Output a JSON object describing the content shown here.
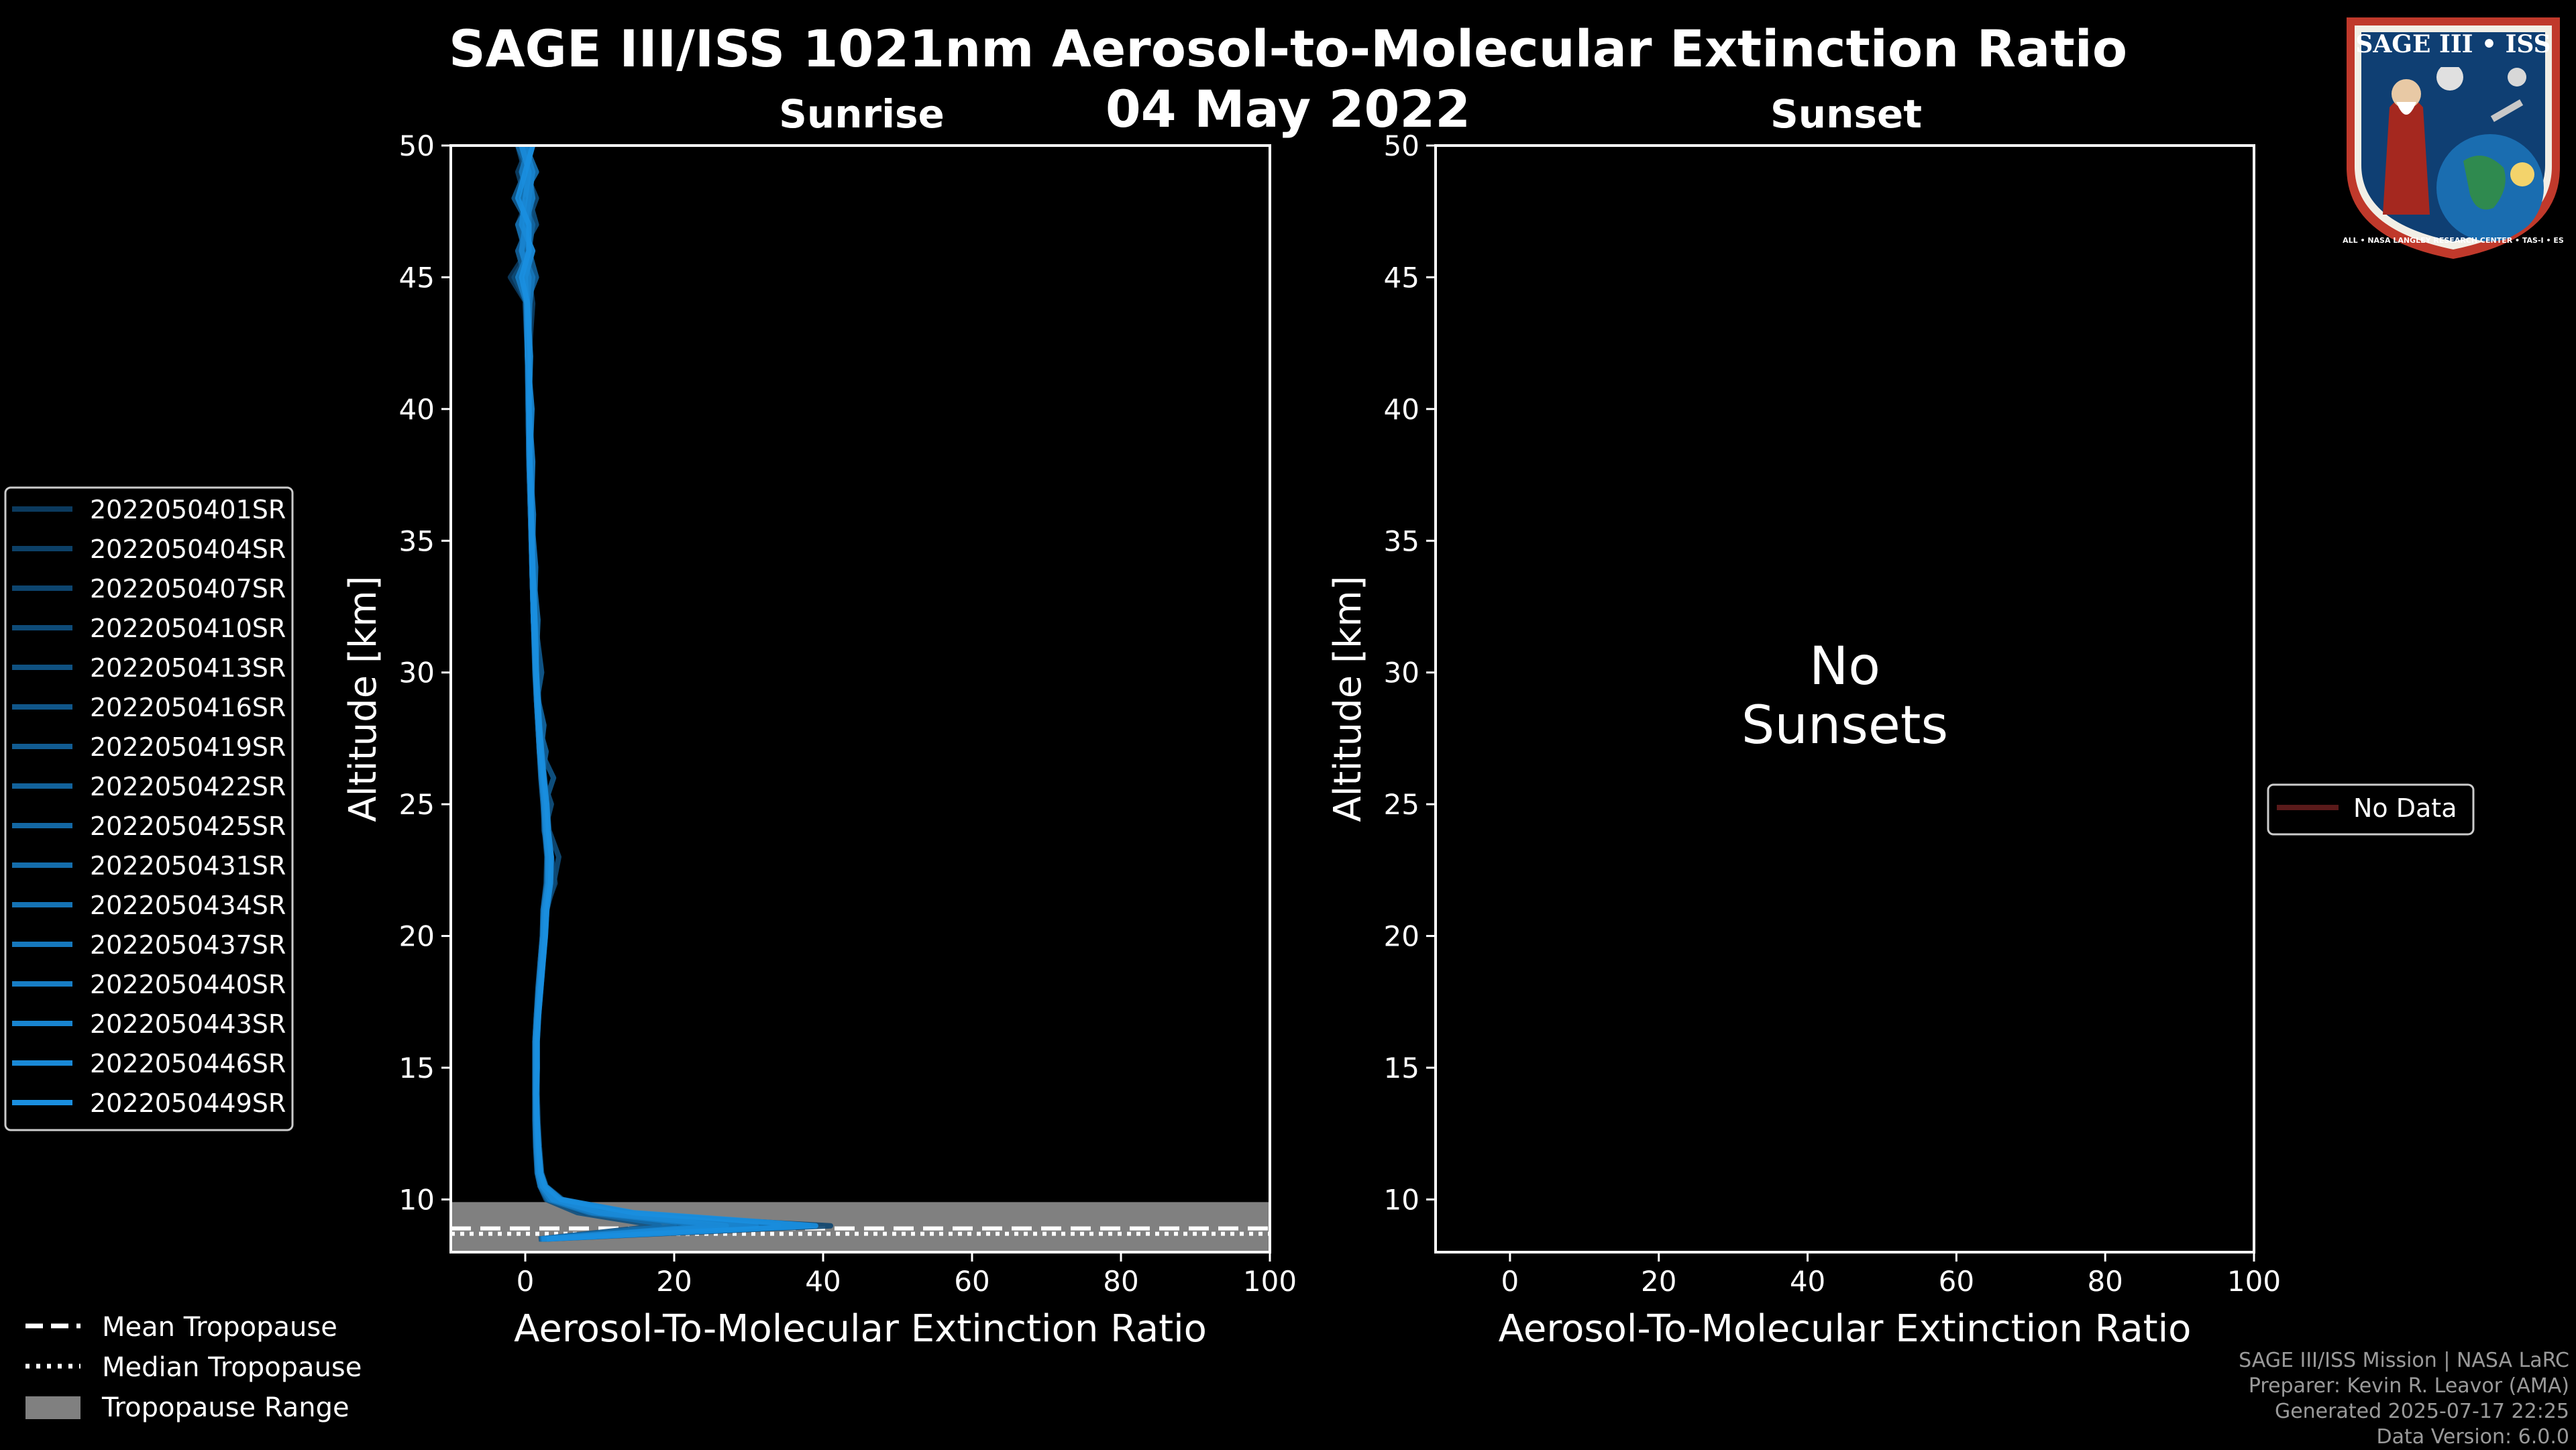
{
  "title_line1": "SAGE III/ISS 1021nm Aerosol-to-Molecular Extinction Ratio",
  "title_line2": "04 May 2022",
  "logo": {
    "name": "SAGE III • ISS",
    "ring_text": "BALL • NASA LANGLEY RESEARCH CENTER • TAS-I • ESA"
  },
  "footer": {
    "line1": "SAGE III/ISS Mission | NASA LaRC",
    "line2": "Preparer: Kevin R. Leavor (AMA)",
    "line3": "Generated 2025-07-17 22:25",
    "line4": "Data Version: 6.0.0"
  },
  "colors": {
    "background": "#000000",
    "sunrise_dark": "#0b3a5e",
    "sunrise_light": "#1a8fe0",
    "tropopause_fill": "#808080",
    "no_data": "#5a1a1a"
  },
  "chart_data": [
    {
      "type": "line",
      "title": "Sunrise",
      "xlabel": "Aerosol-To-Molecular Extinction Ratio",
      "ylabel": "Altitude [km]",
      "xlim": [
        -10,
        100
      ],
      "ylim": [
        8,
        50
      ],
      "xticks": [
        0,
        20,
        40,
        60,
        80,
        100
      ],
      "yticks": [
        10,
        15,
        20,
        25,
        30,
        35,
        40,
        45,
        50
      ],
      "altitudes": [
        8.5,
        9,
        9.5,
        10,
        10.5,
        11,
        12,
        13,
        14,
        15,
        16,
        17,
        18,
        19,
        20,
        21,
        22,
        23,
        24,
        25,
        26,
        27,
        28,
        29,
        30,
        32,
        34,
        36,
        38,
        40,
        42,
        44,
        45,
        46,
        47,
        48,
        49,
        50
      ],
      "series": [
        {
          "name": "2022050401SR",
          "values": [
            2.0,
            26.0,
            8.0,
            3.0,
            2.5,
            2.0,
            1.8,
            1.5,
            1.5,
            1.4,
            1.5,
            1.7,
            2.0,
            2.3,
            2.6,
            2.6,
            3.5,
            3.0,
            2.8,
            2.6,
            2.3,
            2.0,
            1.8,
            1.6,
            1.5,
            1.2,
            1.0,
            0.8,
            0.6,
            0.5,
            0.3,
            0.2,
            -2.0,
            0.3,
            -1.0,
            0.4,
            -0.5,
            1.0
          ]
        },
        {
          "name": "2022050404SR",
          "values": [
            2.5,
            33.0,
            11.0,
            4.0,
            2.0,
            1.6,
            1.5,
            1.4,
            1.4,
            1.4,
            1.3,
            1.5,
            1.8,
            2.1,
            2.4,
            2.5,
            3.0,
            3.3,
            2.5,
            2.5,
            2.2,
            1.9,
            1.7,
            1.5,
            1.4,
            1.1,
            0.9,
            0.7,
            0.5,
            0.4,
            0.5,
            1.0,
            0.5,
            -1.0,
            1.0,
            0.0,
            -1.0,
            0.5
          ]
        },
        {
          "name": "2022050407SR",
          "values": [
            3.0,
            41.0,
            9.0,
            3.5,
            2.2,
            1.8,
            1.6,
            1.5,
            1.5,
            1.5,
            1.4,
            1.6,
            1.9,
            2.2,
            2.5,
            2.7,
            4.0,
            3.5,
            3.0,
            2.7,
            2.4,
            2.1,
            1.9,
            1.7,
            1.5,
            1.2,
            1.0,
            0.8,
            0.6,
            0.5,
            0.4,
            0.3,
            1.0,
            0.0,
            0.5,
            -0.5,
            0.5,
            0.0
          ]
        },
        {
          "name": "2022050410SR",
          "values": [
            2.2,
            22.0,
            14.0,
            5.0,
            2.8,
            2.2,
            1.9,
            1.7,
            1.6,
            1.6,
            1.6,
            1.8,
            2.1,
            2.4,
            2.7,
            2.9,
            3.8,
            4.5,
            3.2,
            2.9,
            2.6,
            2.2,
            2.0,
            1.8,
            1.6,
            1.3,
            1.1,
            0.9,
            0.7,
            0.6,
            0.4,
            0.2,
            -1.5,
            0.6,
            0.2,
            1.5,
            0.0,
            -1.0
          ]
        },
        {
          "name": "2022050413SR",
          "values": [
            1.8,
            18.0,
            7.0,
            2.8,
            2.0,
            1.7,
            1.5,
            1.4,
            1.3,
            1.3,
            1.3,
            1.5,
            1.8,
            2.0,
            2.3,
            2.4,
            2.8,
            2.9,
            2.6,
            3.5,
            2.3,
            2.0,
            1.8,
            1.6,
            1.4,
            1.1,
            0.9,
            0.7,
            0.5,
            0.4,
            0.3,
            0.0,
            0.5,
            -0.5,
            1.5,
            0.5,
            1.0,
            -0.5
          ]
        },
        {
          "name": "2022050416SR",
          "values": [
            2.4,
            30.0,
            12.0,
            4.5,
            2.4,
            2.0,
            1.7,
            1.6,
            1.5,
            1.5,
            1.5,
            1.7,
            2.0,
            2.3,
            2.6,
            2.8,
            3.2,
            3.0,
            2.8,
            2.6,
            3.8,
            2.1,
            1.9,
            1.7,
            1.5,
            1.2,
            1.0,
            0.8,
            0.6,
            0.5,
            0.4,
            0.5,
            -0.5,
            1.0,
            -0.5,
            1.0,
            0.5,
            0.0
          ]
        },
        {
          "name": "2022050419SR",
          "values": [
            2.6,
            36.0,
            10.0,
            3.8,
            2.3,
            1.9,
            1.6,
            1.5,
            1.4,
            1.5,
            1.4,
            1.6,
            1.9,
            2.2,
            2.5,
            2.6,
            3.1,
            3.2,
            2.9,
            2.7,
            2.4,
            2.0,
            1.8,
            1.6,
            2.2,
            1.3,
            1.0,
            0.8,
            0.6,
            0.5,
            0.3,
            0.2,
            0.0,
            -1.0,
            0.5,
            -1.5,
            0.0,
            1.0
          ]
        },
        {
          "name": "2022050422SR",
          "values": [
            2.0,
            24.0,
            9.5,
            3.2,
            2.1,
            1.7,
            1.5,
            1.4,
            1.4,
            1.4,
            1.4,
            1.6,
            1.9,
            2.2,
            2.4,
            2.5,
            3.0,
            3.1,
            2.7,
            2.5,
            2.2,
            2.8,
            1.8,
            1.6,
            1.4,
            1.1,
            0.9,
            0.7,
            0.5,
            0.4,
            0.3,
            0.1,
            1.5,
            0.5,
            -0.5,
            0.5,
            -0.5,
            0.5
          ]
        },
        {
          "name": "2022050425SR",
          "values": [
            2.8,
            38.0,
            13.0,
            4.2,
            2.6,
            2.1,
            1.8,
            1.6,
            1.5,
            1.6,
            1.5,
            1.7,
            2.0,
            2.3,
            2.6,
            2.8,
            3.3,
            3.4,
            3.0,
            2.8,
            2.5,
            2.1,
            2.5,
            1.7,
            1.5,
            1.2,
            1.0,
            0.8,
            0.6,
            0.5,
            0.4,
            0.3,
            -0.5,
            0.5,
            1.0,
            -0.5,
            0.5,
            -1.0
          ]
        },
        {
          "name": "2022050431SR",
          "values": [
            1.9,
            20.0,
            8.5,
            3.0,
            2.0,
            1.6,
            1.4,
            1.3,
            1.3,
            1.3,
            1.3,
            1.5,
            1.7,
            2.0,
            2.3,
            2.4,
            2.9,
            3.0,
            2.6,
            2.4,
            2.1,
            1.9,
            1.7,
            1.5,
            1.3,
            1.1,
            0.9,
            0.7,
            0.5,
            0.4,
            0.3,
            0.2,
            0.5,
            0.0,
            -1.0,
            1.0,
            0.0,
            0.5
          ]
        },
        {
          "name": "2022050434SR",
          "values": [
            2.3,
            28.0,
            11.5,
            4.1,
            2.5,
            2.0,
            1.7,
            1.6,
            1.5,
            1.5,
            1.5,
            1.7,
            2.0,
            2.3,
            2.5,
            2.7,
            3.2,
            3.3,
            2.9,
            2.7,
            2.4,
            2.0,
            1.8,
            1.6,
            1.4,
            1.7,
            1.0,
            0.8,
            0.6,
            0.5,
            0.4,
            0.3,
            0.0,
            0.5,
            0.0,
            -0.5,
            1.5,
            0.0
          ]
        },
        {
          "name": "2022050437SR",
          "values": [
            2.7,
            34.0,
            10.5,
            3.6,
            2.2,
            1.8,
            1.6,
            1.5,
            1.4,
            1.4,
            1.4,
            1.6,
            1.9,
            2.1,
            2.4,
            2.6,
            3.1,
            3.2,
            2.8,
            2.6,
            2.3,
            2.0,
            1.8,
            1.6,
            1.4,
            1.2,
            1.4,
            0.8,
            0.6,
            0.5,
            0.4,
            0.6,
            1.0,
            -0.5,
            0.5,
            0.5,
            -0.5,
            0.5
          ]
        },
        {
          "name": "2022050440SR",
          "values": [
            2.1,
            25.0,
            9.0,
            3.3,
            2.1,
            1.7,
            1.5,
            1.4,
            1.4,
            1.4,
            1.4,
            1.6,
            1.8,
            2.1,
            2.4,
            2.5,
            3.0,
            3.0,
            2.7,
            2.5,
            2.2,
            1.9,
            1.7,
            1.5,
            1.4,
            1.1,
            0.9,
            1.1,
            0.6,
            0.5,
            0.3,
            0.2,
            -1.0,
            0.5,
            0.0,
            1.0,
            0.5,
            -0.5
          ]
        },
        {
          "name": "2022050443SR",
          "values": [
            2.5,
            31.0,
            12.5,
            4.4,
            2.4,
            1.9,
            1.7,
            1.5,
            1.5,
            1.5,
            1.5,
            1.7,
            2.0,
            2.3,
            2.6,
            2.7,
            3.2,
            3.2,
            2.8,
            2.6,
            2.3,
            2.0,
            1.8,
            1.6,
            1.5,
            1.2,
            1.0,
            0.8,
            1.0,
            0.5,
            0.4,
            0.3,
            0.5,
            -0.5,
            0.0,
            0.5,
            1.0,
            0.0
          ]
        },
        {
          "name": "2022050446SR",
          "values": [
            2.2,
            27.0,
            10.0,
            3.7,
            2.3,
            1.8,
            1.6,
            1.5,
            1.4,
            1.4,
            1.4,
            1.6,
            1.9,
            2.2,
            2.4,
            2.6,
            3.1,
            3.1,
            2.8,
            2.6,
            2.3,
            2.0,
            1.8,
            1.6,
            1.4,
            1.1,
            0.9,
            0.8,
            0.6,
            0.9,
            0.3,
            0.2,
            0.0,
            1.0,
            -0.5,
            0.0,
            0.5,
            -0.5
          ]
        },
        {
          "name": "2022050449SR",
          "values": [
            2.9,
            39.0,
            14.5,
            4.8,
            2.7,
            2.1,
            1.8,
            1.6,
            1.5,
            1.6,
            1.6,
            1.8,
            2.1,
            2.4,
            2.7,
            2.9,
            3.4,
            3.5,
            3.1,
            2.9,
            2.5,
            2.2,
            1.9,
            1.7,
            1.5,
            1.3,
            1.0,
            0.8,
            0.6,
            0.5,
            0.7,
            0.3,
            -0.5,
            0.5,
            0.5,
            -1.0,
            0.0,
            1.0
          ]
        }
      ],
      "tropopause": {
        "mean_km": 8.8,
        "median_km": 8.8,
        "range_km": [
          8.0,
          9.9
        ]
      },
      "legend": [
        "Mean Tropopause",
        "Median Tropopause",
        "Tropopause Range"
      ]
    },
    {
      "type": "line",
      "title": "Sunset",
      "xlabel": "Aerosol-To-Molecular Extinction Ratio",
      "ylabel": "Altitude [km]",
      "xlim": [
        -10,
        100
      ],
      "ylim": [
        8,
        50
      ],
      "xticks": [
        0,
        20,
        40,
        60,
        80,
        100
      ],
      "yticks": [
        10,
        15,
        20,
        25,
        30,
        35,
        40,
        45,
        50
      ],
      "annotation_line1": "No",
      "annotation_line2": "Sunsets",
      "legend": [
        "No Data"
      ],
      "series": []
    }
  ]
}
